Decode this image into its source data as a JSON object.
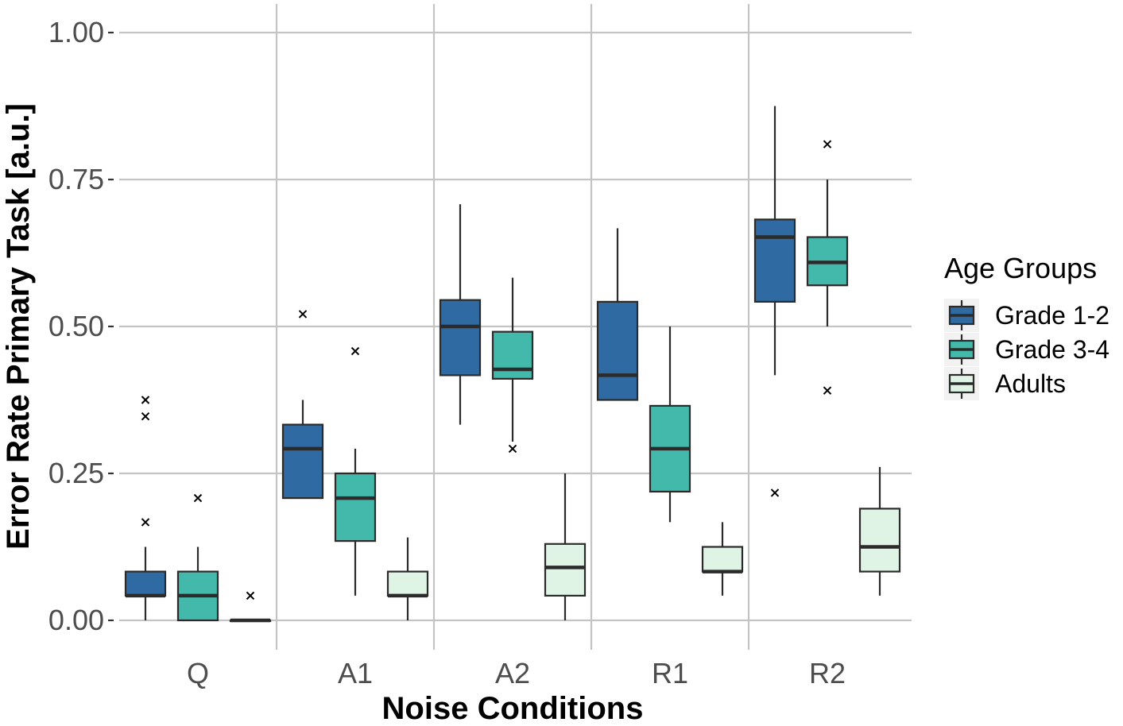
{
  "chart_data": {
    "type": "boxplot",
    "xlabel": "Noise Conditions",
    "ylabel": "Error Rate Primary Task [a.u.]",
    "ylim": [
      0,
      1
    ],
    "yticks": [
      0,
      0.25,
      0.5,
      0.75,
      1.0
    ],
    "ytick_labels": [
      "0.00",
      "0.25",
      "0.50",
      "0.75",
      "1.00"
    ],
    "categories": [
      "Q",
      "A1",
      "A2",
      "R1",
      "R2"
    ],
    "legend": {
      "title": "Age Groups",
      "position": "right"
    },
    "series": [
      {
        "name": "Grade 1-2",
        "color": "#2f6aa3",
        "boxes": [
          {
            "whisker_low": 0.0,
            "q1": 0.042,
            "median": 0.042,
            "q3": 0.083,
            "whisker_high": 0.125,
            "outliers": [
              0.167,
              0.347,
              0.375
            ]
          },
          {
            "whisker_low": 0.208,
            "q1": 0.208,
            "median": 0.292,
            "q3": 0.333,
            "whisker_high": 0.375,
            "outliers": [
              0.521
            ]
          },
          {
            "whisker_low": 0.333,
            "q1": 0.417,
            "median": 0.5,
            "q3": 0.545,
            "whisker_high": 0.708,
            "outliers": []
          },
          {
            "whisker_low": 0.375,
            "q1": 0.375,
            "median": 0.417,
            "q3": 0.542,
            "whisker_high": 0.667,
            "outliers": []
          },
          {
            "whisker_low": 0.417,
            "q1": 0.542,
            "median": 0.652,
            "q3": 0.682,
            "whisker_high": 0.875,
            "outliers": [
              0.217
            ]
          }
        ]
      },
      {
        "name": "Grade 3-4",
        "color": "#42b9ab",
        "boxes": [
          {
            "whisker_low": 0.0,
            "q1": 0.0,
            "median": 0.042,
            "q3": 0.083,
            "whisker_high": 0.125,
            "outliers": [
              0.208
            ]
          },
          {
            "whisker_low": 0.042,
            "q1": 0.135,
            "median": 0.208,
            "q3": 0.25,
            "whisker_high": 0.292,
            "outliers": [
              0.458
            ]
          },
          {
            "whisker_low": 0.304,
            "q1": 0.411,
            "median": 0.427,
            "q3": 0.491,
            "whisker_high": 0.583,
            "outliers": [
              0.292
            ]
          },
          {
            "whisker_low": 0.167,
            "q1": 0.219,
            "median": 0.292,
            "q3": 0.365,
            "whisker_high": 0.5,
            "outliers": []
          },
          {
            "whisker_low": 0.5,
            "q1": 0.57,
            "median": 0.609,
            "q3": 0.652,
            "whisker_high": 0.75,
            "outliers": [
              0.391,
              0.81
            ]
          }
        ]
      },
      {
        "name": "Adults",
        "color": "#e0f4e6",
        "boxes": [
          {
            "whisker_low": 0.0,
            "q1": 0.0,
            "median": 0.0,
            "q3": 0.0,
            "whisker_high": 0.0,
            "outliers": [
              0.042
            ]
          },
          {
            "whisker_low": 0.0,
            "q1": 0.042,
            "median": 0.042,
            "q3": 0.083,
            "whisker_high": 0.141,
            "outliers": []
          },
          {
            "whisker_low": 0.0,
            "q1": 0.042,
            "median": 0.09,
            "q3": 0.13,
            "whisker_high": 0.25,
            "outliers": []
          },
          {
            "whisker_low": 0.042,
            "q1": 0.083,
            "median": 0.083,
            "q3": 0.125,
            "whisker_high": 0.167,
            "outliers": []
          },
          {
            "whisker_low": 0.042,
            "q1": 0.083,
            "median": 0.125,
            "q3": 0.19,
            "whisker_high": 0.261,
            "outliers": []
          }
        ]
      }
    ]
  }
}
